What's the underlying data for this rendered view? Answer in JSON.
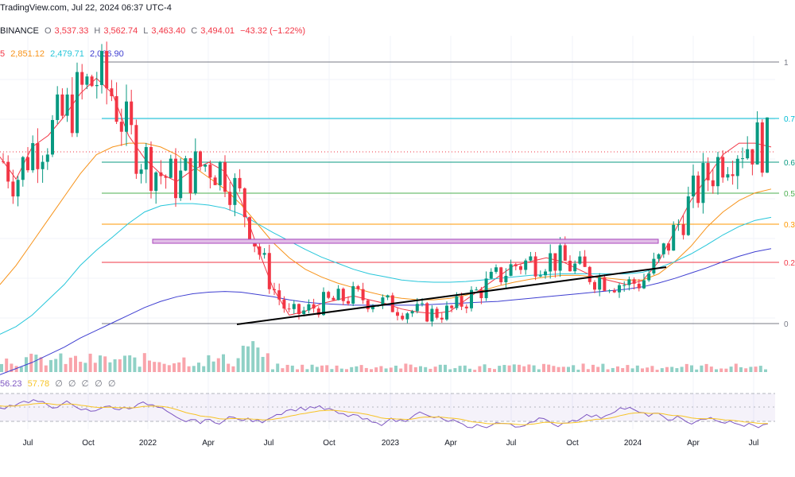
{
  "header": {
    "line1": "TradingView.com, Jul 22, 2024 06:37 UTC-4",
    "exchange": "BINANCE",
    "ohlc": [
      {
        "label": "O",
        "value": "3,537.33"
      },
      {
        "label": "H",
        "value": "3,562.74"
      },
      {
        "label": "L",
        "value": "3,463.40"
      },
      {
        "label": "C",
        "value": "3,494.01"
      }
    ],
    "change": "−43.32 (−1.22%)",
    "ma_prefix": "5",
    "ma_values": [
      {
        "value": "2,851.12",
        "color": "#f7931a"
      },
      {
        "value": "2,479.71",
        "color": "#26c6da"
      },
      {
        "value": "2,066.90",
        "color": "#3f3fd1"
      }
    ]
  },
  "rsi_header": {
    "values": [
      "56.23",
      "57.78"
    ],
    "placeholders": [
      "∅",
      "∅",
      "∅",
      "∅",
      "∅"
    ]
  },
  "chart_data": {
    "type": "candlestick",
    "title": "",
    "x_ticks": [
      "Jul",
      "Oct",
      "2022",
      "Apr",
      "Jul",
      "Oct",
      "2023",
      "Apr",
      "Jul",
      "Oct",
      "2024",
      "Apr",
      "Jul"
    ],
    "fib_levels": [
      {
        "label": "1",
        "color": "#787b86"
      },
      {
        "label": "0.7",
        "color": "#00bcd4"
      },
      {
        "label": "0.6",
        "color": "#089981"
      },
      {
        "label": "0.5",
        "color": "#4caf50"
      },
      {
        "label": "0.3",
        "color": "#ff9800"
      },
      {
        "label": "0.2",
        "color": "#f23645"
      },
      {
        "label": "0",
        "color": "#787b86"
      }
    ],
    "series": [
      {
        "name": "",
        "color": "#f23645",
        "values": [
          3.27,
          2.98,
          3.4,
          3.55,
          3.8,
          4.1,
          4.3,
          4.1,
          3.55,
          3.25,
          3.05,
          2.95,
          3.1,
          3.2,
          3.08,
          2.7,
          2.1,
          1.55,
          1.2,
          1.25,
          1.35,
          1.4,
          1.45,
          1.4,
          1.35,
          1.28,
          1.24,
          1.22,
          1.25,
          1.4,
          1.55,
          1.7,
          1.85,
          1.9,
          1.95,
          1.9,
          1.8,
          1.7,
          1.65,
          1.6,
          1.65,
          1.9,
          2.3,
          2.7,
          3.0,
          3.3,
          3.45,
          3.45,
          3.4
        ]
      },
      {
        "name": "",
        "color": "#f7931a",
        "values": [
          1.6,
          1.85,
          2.15,
          2.45,
          2.75,
          3.05,
          3.3,
          3.4,
          3.45,
          3.45,
          3.4,
          3.3,
          3.15,
          3.0,
          2.85,
          2.65,
          2.4,
          2.15,
          1.95,
          1.8,
          1.7,
          1.62,
          1.56,
          1.5,
          1.45,
          1.42,
          1.4,
          1.4,
          1.42,
          1.46,
          1.52,
          1.58,
          1.63,
          1.67,
          1.7,
          1.72,
          1.72,
          1.7,
          1.68,
          1.66,
          1.66,
          1.74,
          1.9,
          2.1,
          2.35,
          2.55,
          2.7,
          2.8,
          2.85
        ]
      },
      {
        "name": "",
        "color": "#26c6da",
        "values": [
          0.95,
          1.05,
          1.2,
          1.4,
          1.6,
          1.85,
          2.05,
          2.22,
          2.4,
          2.55,
          2.63,
          2.66,
          2.66,
          2.64,
          2.6,
          2.52,
          2.4,
          2.28,
          2.17,
          2.06,
          1.96,
          1.88,
          1.8,
          1.74,
          1.7,
          1.66,
          1.64,
          1.63,
          1.63,
          1.64,
          1.66,
          1.68,
          1.7,
          1.72,
          1.73,
          1.74,
          1.74,
          1.74,
          1.74,
          1.74,
          1.76,
          1.82,
          1.9,
          2.0,
          2.12,
          2.25,
          2.36,
          2.44,
          2.48
        ]
      },
      {
        "name": "",
        "color": "#3f3fd1",
        "values": [
          0.42,
          0.5,
          0.58,
          0.68,
          0.78,
          0.9,
          1.0,
          1.1,
          1.2,
          1.3,
          1.38,
          1.44,
          1.48,
          1.5,
          1.51,
          1.5,
          1.47,
          1.44,
          1.4,
          1.37,
          1.35,
          1.34,
          1.33,
          1.33,
          1.33,
          1.33,
          1.33,
          1.34,
          1.35,
          1.36,
          1.37,
          1.38,
          1.4,
          1.42,
          1.44,
          1.46,
          1.48,
          1.5,
          1.52,
          1.54,
          1.57,
          1.62,
          1.68,
          1.75,
          1.82,
          1.9,
          1.97,
          2.03,
          2.07
        ]
      }
    ]
  }
}
